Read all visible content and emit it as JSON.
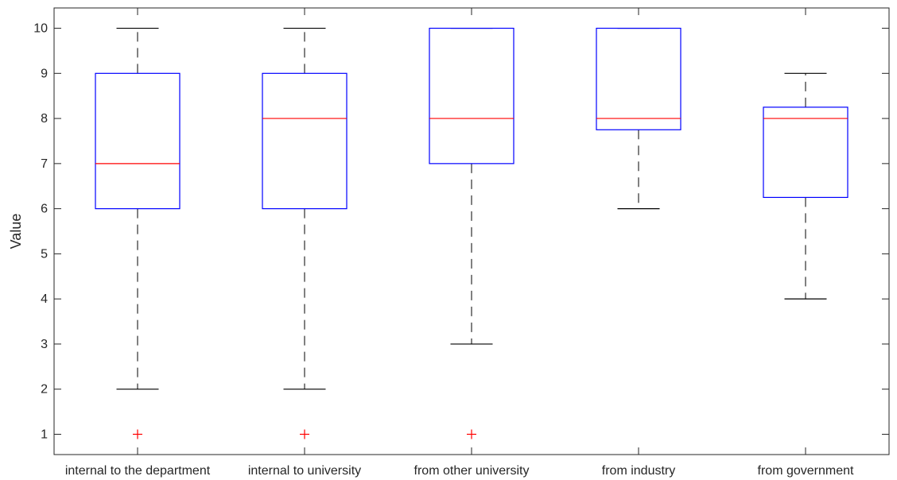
{
  "chart_data": {
    "type": "box",
    "ylabel": "Value",
    "ylim": [
      0.55,
      10.45
    ],
    "yticks": [
      1,
      2,
      3,
      4,
      5,
      6,
      7,
      8,
      9,
      10
    ],
    "grid": false,
    "categories": [
      "internal to the department",
      "internal to university",
      "from other university",
      "from industry",
      "from government"
    ],
    "boxes": [
      {
        "category": "internal to the department",
        "whisker_low": 2,
        "q1": 6,
        "median": 7,
        "q3": 9,
        "whisker_high": 10,
        "outliers": [
          1
        ]
      },
      {
        "category": "internal to university",
        "whisker_low": 2,
        "q1": 6,
        "median": 8,
        "q3": 9,
        "whisker_high": 10,
        "outliers": [
          1
        ]
      },
      {
        "category": "from other university",
        "whisker_low": 3,
        "q1": 7,
        "median": 8,
        "q3": 10,
        "whisker_high": 10,
        "outliers": [
          1
        ]
      },
      {
        "category": "from industry",
        "whisker_low": 6,
        "q1": 7.75,
        "median": 8,
        "q3": 10,
        "whisker_high": 10,
        "outliers": []
      },
      {
        "category": "from government",
        "whisker_low": 4,
        "q1": 6.25,
        "median": 8,
        "q3": 8.25,
        "whisker_high": 9,
        "outliers": []
      }
    ],
    "colors": {
      "box": "#0000ff",
      "median": "#ff0000",
      "whisker": "#000000",
      "outlier": "#ff0000",
      "axis": "#262626"
    }
  }
}
